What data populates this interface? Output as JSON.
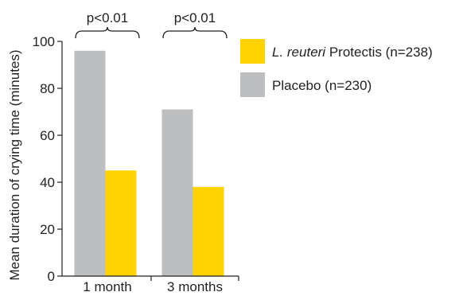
{
  "chart_data": {
    "type": "bar",
    "ylabel": "Mean duration of crying time (minutes)",
    "xlabel": "",
    "ylim": [
      0,
      100
    ],
    "yticks": [
      0,
      20,
      40,
      60,
      80,
      100
    ],
    "categories": [
      "1 month",
      "3 months"
    ],
    "series": [
      {
        "name": "Placebo (n=230)",
        "color": "#bcbec0",
        "values": [
          96,
          71
        ]
      },
      {
        "name": "L. reuteri Protectis (n=238)",
        "name_italic_part": "L. reuteri",
        "name_rest": " Protectis (n=238)",
        "color": "#ffd200",
        "values": [
          45,
          38
        ]
      }
    ],
    "legend": {
      "placement": "top-right",
      "order": [
        1,
        0
      ]
    },
    "annotations": [
      "p<0.01",
      "p<0.01"
    ],
    "grid": false
  }
}
